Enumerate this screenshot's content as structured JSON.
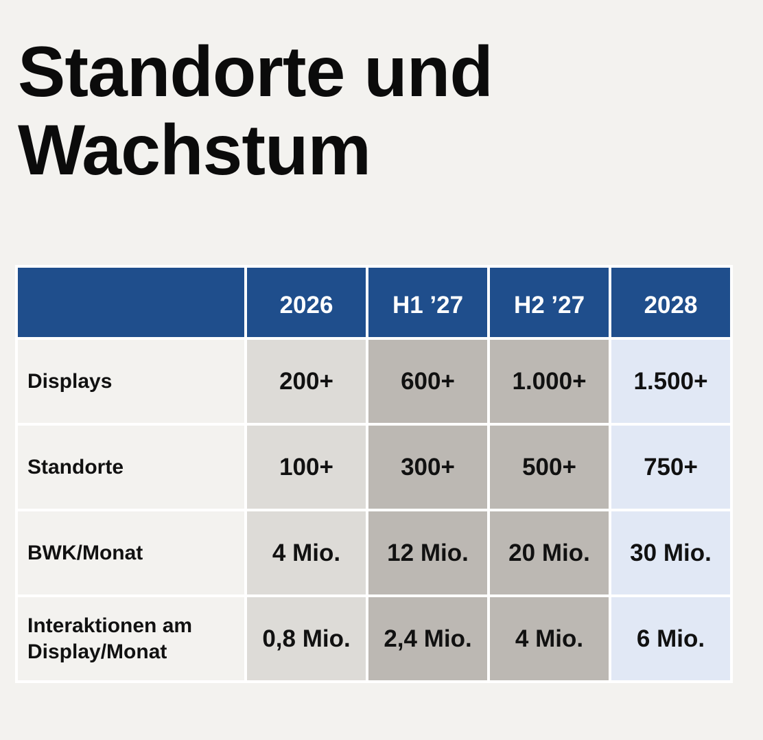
{
  "title": {
    "line1": "Standorte und",
    "line2": "Wachstum"
  },
  "table": {
    "columns": [
      "",
      "2026",
      "H1 ’27",
      "H2 ’27",
      "2028"
    ],
    "rows": [
      {
        "label": "Displays",
        "values": [
          "200+",
          "600+",
          "1.000+",
          "1.500+"
        ]
      },
      {
        "label": "Standorte",
        "values": [
          "100+",
          "300+",
          "500+",
          "750+"
        ]
      },
      {
        "label": "BWK/Monat",
        "values": [
          "4 Mio.",
          "12 Mio.",
          "20 Mio.",
          "30 Mio."
        ]
      },
      {
        "label": "Interaktionen am Display/Monat",
        "values": [
          "0,8 Mio.",
          "2,4 Mio.",
          "4 Mio.",
          "6 Mio."
        ]
      }
    ]
  },
  "colors": {
    "header_bg": "#1f4e8c",
    "col_2026_bg": "#dddbd7",
    "col_h1_bg": "#bcb8b3",
    "col_h2_bg": "#bcb8b3",
    "col_2028_bg": "#e1e8f5",
    "page_bg": "#f3f2ef"
  }
}
